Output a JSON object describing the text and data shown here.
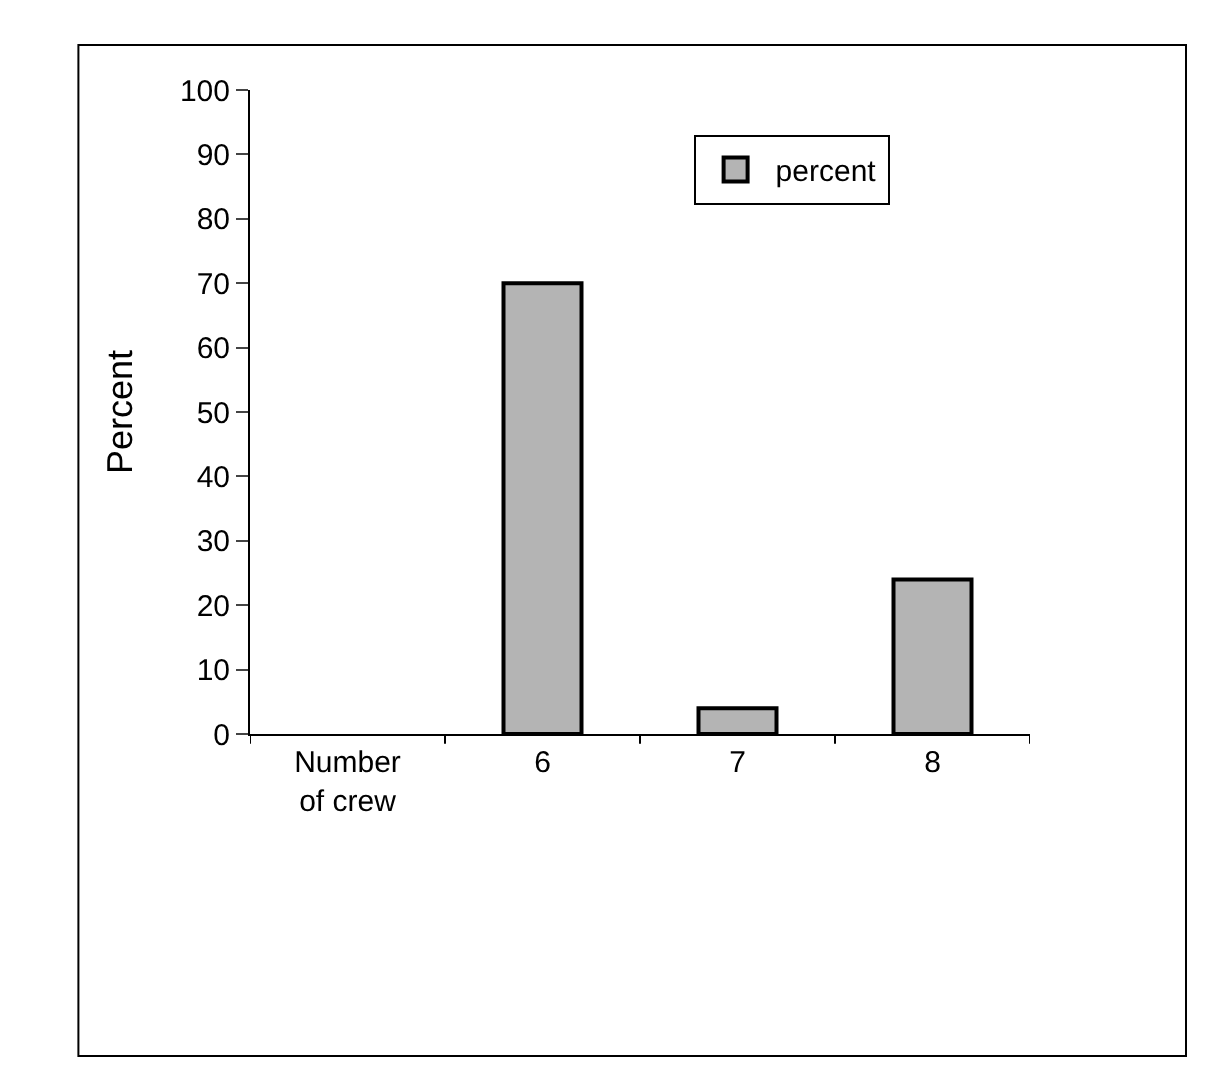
{
  "chart_data": {
    "type": "bar",
    "ylabel": "Percent",
    "categories": [
      "Number of crew",
      "6",
      "7",
      "8"
    ],
    "series": [
      {
        "name": "percent",
        "color": "#b4b4b4",
        "values": [
          null,
          70,
          4,
          24
        ]
      }
    ],
    "ylim": [
      0,
      100
    ],
    "yticks": [
      0,
      10,
      20,
      30,
      40,
      50,
      60,
      70,
      80,
      90,
      100
    ],
    "legend": "top right"
  }
}
